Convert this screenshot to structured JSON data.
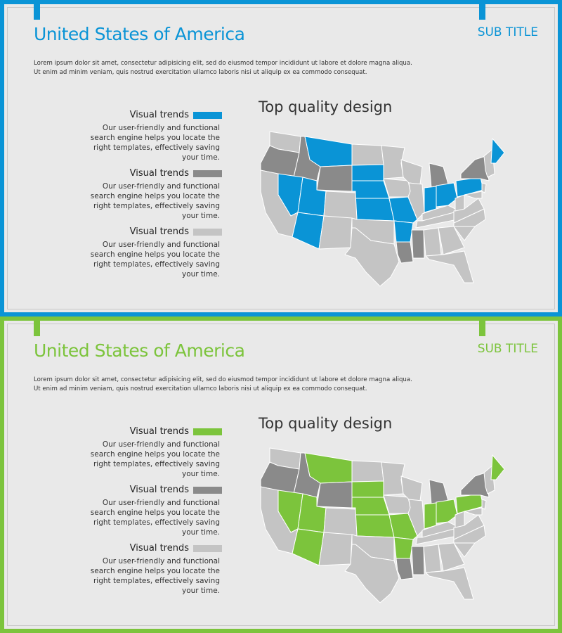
{
  "colors": {
    "dark": "#8a8a8a",
    "light": "#c4c4c4"
  },
  "map": {
    "accent_states": [
      "MT",
      "SD",
      "NE",
      "KS",
      "MO",
      "AR",
      "NV",
      "UT",
      "AZ",
      "IN",
      "OH",
      "PA",
      "ME"
    ],
    "dark_states": [
      "OR",
      "ID",
      "WY",
      "MI",
      "NY",
      "MS",
      "LA"
    ]
  },
  "slides": [
    {
      "accent": "#0a94d6",
      "title": "United States of America",
      "subtitle": "SUB TITLE",
      "body": "Lorem ipsum dolor sit amet, consectetur adipisicing elit, sed do eiusmod tempor incididunt ut labore et dolore magna aliqua. Ut enim ad minim veniam, quis nostrud exercitation ullamco laboris nisi ut aliquip ex ea commodo consequat.",
      "map_title": "Top quality design",
      "legend": [
        {
          "label": "Visual trends",
          "swatch": "accent",
          "text": "Our user-friendly and functional search engine helps you locate the right templates, effectively saving your time."
        },
        {
          "label": "Visual trends",
          "swatch": "dark",
          "text": "Our user-friendly and functional search engine helps you locate the right templates, effectively saving your time."
        },
        {
          "label": "Visual trends",
          "swatch": "light",
          "text": "Our user-friendly and functional search engine helps you locate the right templates, effectively saving your time."
        }
      ]
    },
    {
      "accent": "#7cc43c",
      "title": "United States of America",
      "subtitle": "SUB TITLE",
      "body": "Lorem ipsum dolor sit amet, consectetur adipisicing elit, sed do eiusmod tempor incididunt ut labore et dolore magna aliqua. Ut enim ad minim veniam, quis nostrud exercitation ullamco laboris nisi ut aliquip ex ea commodo consequat.",
      "map_title": "Top quality design",
      "legend": [
        {
          "label": "Visual trends",
          "swatch": "accent",
          "text": "Our user-friendly and functional search engine helps you locate the right templates, effectively saving your time."
        },
        {
          "label": "Visual trends",
          "swatch": "dark",
          "text": "Our user-friendly and functional search engine helps you locate the right templates, effectively saving your time."
        },
        {
          "label": "Visual trends",
          "swatch": "light",
          "text": "Our user-friendly and functional search engine helps you locate the right templates, effectively saving your time."
        }
      ]
    }
  ]
}
